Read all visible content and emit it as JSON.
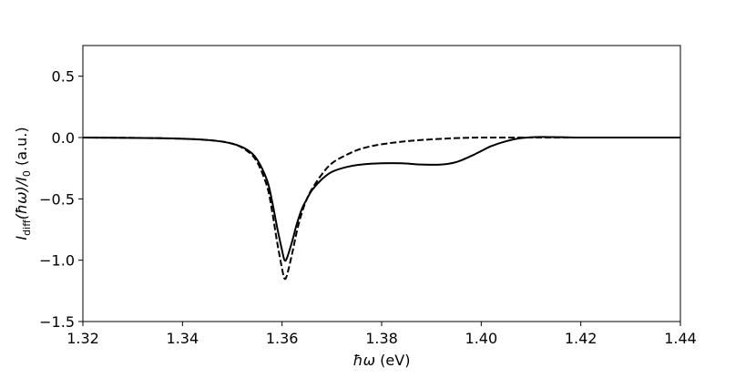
{
  "chart_data": {
    "type": "line",
    "xlabel": {
      "prefix": "ħω",
      "suffix": " (eV)"
    },
    "ylabel": {
      "I": "I",
      "diff": "diff",
      "arg": "(ħω)/",
      "I0": "I",
      "zero": "0",
      "unit": " (a.u.)"
    },
    "xlim": [
      1.32,
      1.44
    ],
    "ylim": [
      -1.5,
      0.75
    ],
    "xticks": [
      1.32,
      1.34,
      1.36,
      1.38,
      1.4,
      1.42,
      1.44
    ],
    "xtick_labels": [
      "1.32",
      "1.34",
      "1.36",
      "1.38",
      "1.40",
      "1.42",
      "1.44"
    ],
    "yticks": [
      -1.5,
      -1.0,
      -0.5,
      0.0,
      0.5
    ],
    "ytick_labels": [
      "−1.5",
      "−1.0",
      "−0.5",
      "0.0",
      "0.5"
    ],
    "grid": false,
    "legend": "none",
    "series": [
      {
        "style": "solid",
        "color": "#000000",
        "x": [
          1.32,
          1.335,
          1.345,
          1.35,
          1.353,
          1.355,
          1.357,
          1.358,
          1.359,
          1.36,
          1.3605,
          1.361,
          1.362,
          1.363,
          1.364,
          1.365,
          1.366,
          1.368,
          1.37,
          1.373,
          1.376,
          1.38,
          1.384,
          1.388,
          1.392,
          1.395,
          1.398,
          1.4,
          1.402,
          1.405,
          1.408,
          1.412,
          1.42,
          1.43,
          1.44
        ],
        "y": [
          0.0,
          -0.005,
          -0.02,
          -0.05,
          -0.1,
          -0.18,
          -0.35,
          -0.52,
          -0.73,
          -0.92,
          -1.0,
          -0.98,
          -0.85,
          -0.7,
          -0.58,
          -0.5,
          -0.43,
          -0.34,
          -0.28,
          -0.24,
          -0.22,
          -0.21,
          -0.21,
          -0.22,
          -0.22,
          -0.2,
          -0.15,
          -0.11,
          -0.07,
          -0.03,
          -0.005,
          0.005,
          0.0,
          0.0,
          0.0
        ]
      },
      {
        "style": "dashed",
        "color": "#000000",
        "x": [
          1.32,
          1.335,
          1.345,
          1.35,
          1.353,
          1.355,
          1.357,
          1.358,
          1.359,
          1.36,
          1.3605,
          1.361,
          1.362,
          1.363,
          1.364,
          1.365,
          1.366,
          1.368,
          1.37,
          1.373,
          1.376,
          1.38,
          1.385,
          1.39,
          1.395,
          1.4,
          1.41,
          1.42,
          1.43,
          1.44
        ],
        "y": [
          0.0,
          -0.005,
          -0.02,
          -0.05,
          -0.11,
          -0.2,
          -0.4,
          -0.6,
          -0.85,
          -1.07,
          -1.15,
          -1.12,
          -0.95,
          -0.76,
          -0.61,
          -0.5,
          -0.42,
          -0.3,
          -0.21,
          -0.14,
          -0.09,
          -0.055,
          -0.03,
          -0.015,
          -0.005,
          0.0,
          0.0,
          0.0,
          0.0,
          0.0
        ]
      }
    ]
  }
}
